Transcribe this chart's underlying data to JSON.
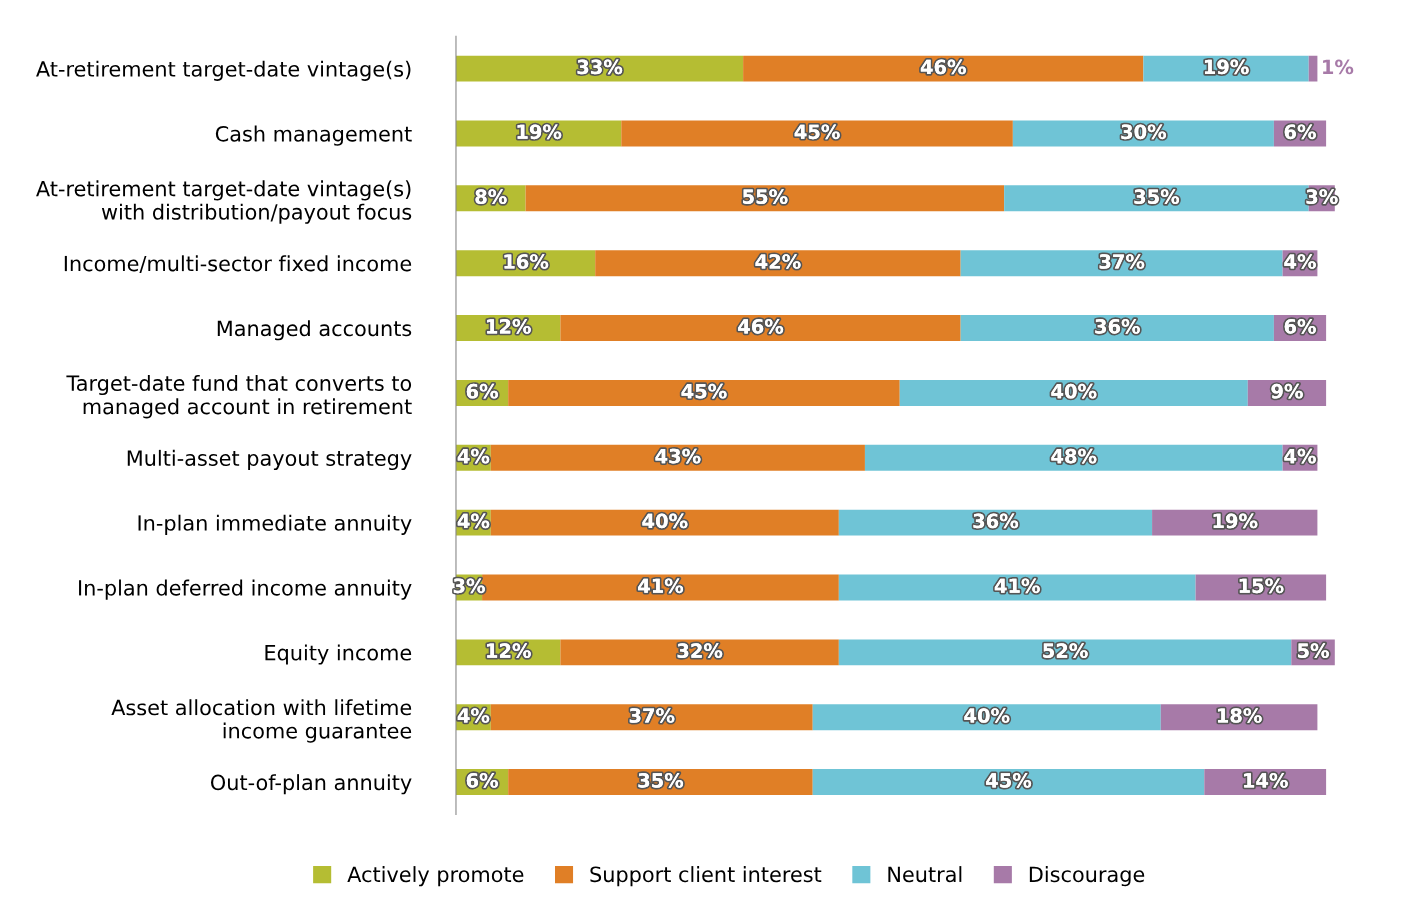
{
  "chart_data": {
    "type": "bar",
    "orientation": "horizontal",
    "stacked": true,
    "legend": "bottom",
    "grid": false,
    "tick_labels": "y",
    "categories": [
      "At-retirement target-date vintage(s)",
      "Cash management",
      "At-retirement target-date vintage(s)\nwith distribution/payout focus",
      "Income/multi-sector fixed income",
      "Managed accounts",
      "Target-date fund that converts to\nmanaged account in retirement",
      "Multi-asset payout strategy",
      "In-plan immediate annuity",
      "In-plan deferred income annuity",
      "Equity income",
      "Asset allocation with lifetime\nincome guarantee",
      "Out-of-plan annuity"
    ],
    "series": [
      {
        "name": "Actively promote",
        "color": "#b5bd33",
        "values": [
          33,
          19,
          8,
          16,
          12,
          6,
          4,
          4,
          3,
          12,
          4,
          6
        ],
        "value_labels": [
          "33%",
          "19%",
          "8%",
          "16%",
          "12%",
          "6%",
          "4%",
          "4%",
          "3%",
          "12%",
          "4%",
          "6%"
        ]
      },
      {
        "name": "Support client interest",
        "color": "#e07f26",
        "values": [
          46,
          45,
          55,
          42,
          46,
          45,
          43,
          40,
          41,
          32,
          37,
          35
        ],
        "value_labels": [
          "46%",
          "45%",
          "55%",
          "42%",
          "46%",
          "45%",
          "43%",
          "40%",
          "41%",
          "32%",
          "37%",
          "35%"
        ]
      },
      {
        "name": "Neutral",
        "color": "#6fc4d6",
        "values": [
          19,
          30,
          35,
          37,
          36,
          40,
          48,
          36,
          41,
          52,
          40,
          45
        ],
        "value_labels": [
          "19%",
          "30%",
          "35%",
          "37%",
          "36%",
          "40%",
          "48%",
          "36%",
          "41%",
          "52%",
          "40%",
          "45%"
        ]
      },
      {
        "name": "Discourage",
        "color": "#a77aa8",
        "values": [
          1,
          6,
          3,
          4,
          6,
          9,
          4,
          19,
          15,
          5,
          18,
          14
        ],
        "value_labels": [
          "1%",
          "6%",
          "3%",
          "4%",
          "6%",
          "9%",
          "4%",
          "19%",
          "15%",
          "5%",
          "18%",
          "14%"
        ]
      }
    ]
  }
}
